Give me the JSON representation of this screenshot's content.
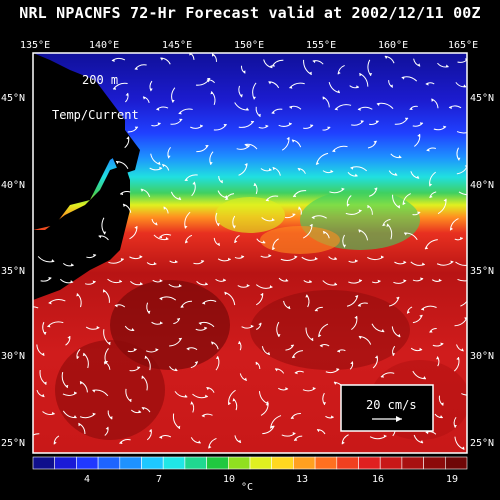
{
  "title": "NRL NPACNFS 72-Hr Forecast valid at 2002/12/11 00Z",
  "depth_label": "200 m",
  "field_label": "Temp/Current",
  "x_ticks": [
    "135°E",
    "140°E",
    "145°E",
    "150°E",
    "155°E",
    "160°E",
    "165°E"
  ],
  "y_ticks": [
    "45°N",
    "40°N",
    "35°N",
    "30°N",
    "25°N"
  ],
  "scale_vector_label": "20 cm/s",
  "colorbar": {
    "tick_labels": [
      "4",
      "7",
      "10",
      "13",
      "16",
      "19"
    ],
    "unit": "°C",
    "colors": [
      "#0f0f8c",
      "#1a1ad6",
      "#2038ff",
      "#1e64ff",
      "#1e92ff",
      "#1ec8ff",
      "#20e6e6",
      "#20d890",
      "#20c840",
      "#90e020",
      "#e0f020",
      "#ffd820",
      "#ffa020",
      "#ff7020",
      "#f04020",
      "#e02020",
      "#c81818",
      "#a81010",
      "#8c0a0a",
      "#6e0606"
    ]
  }
}
